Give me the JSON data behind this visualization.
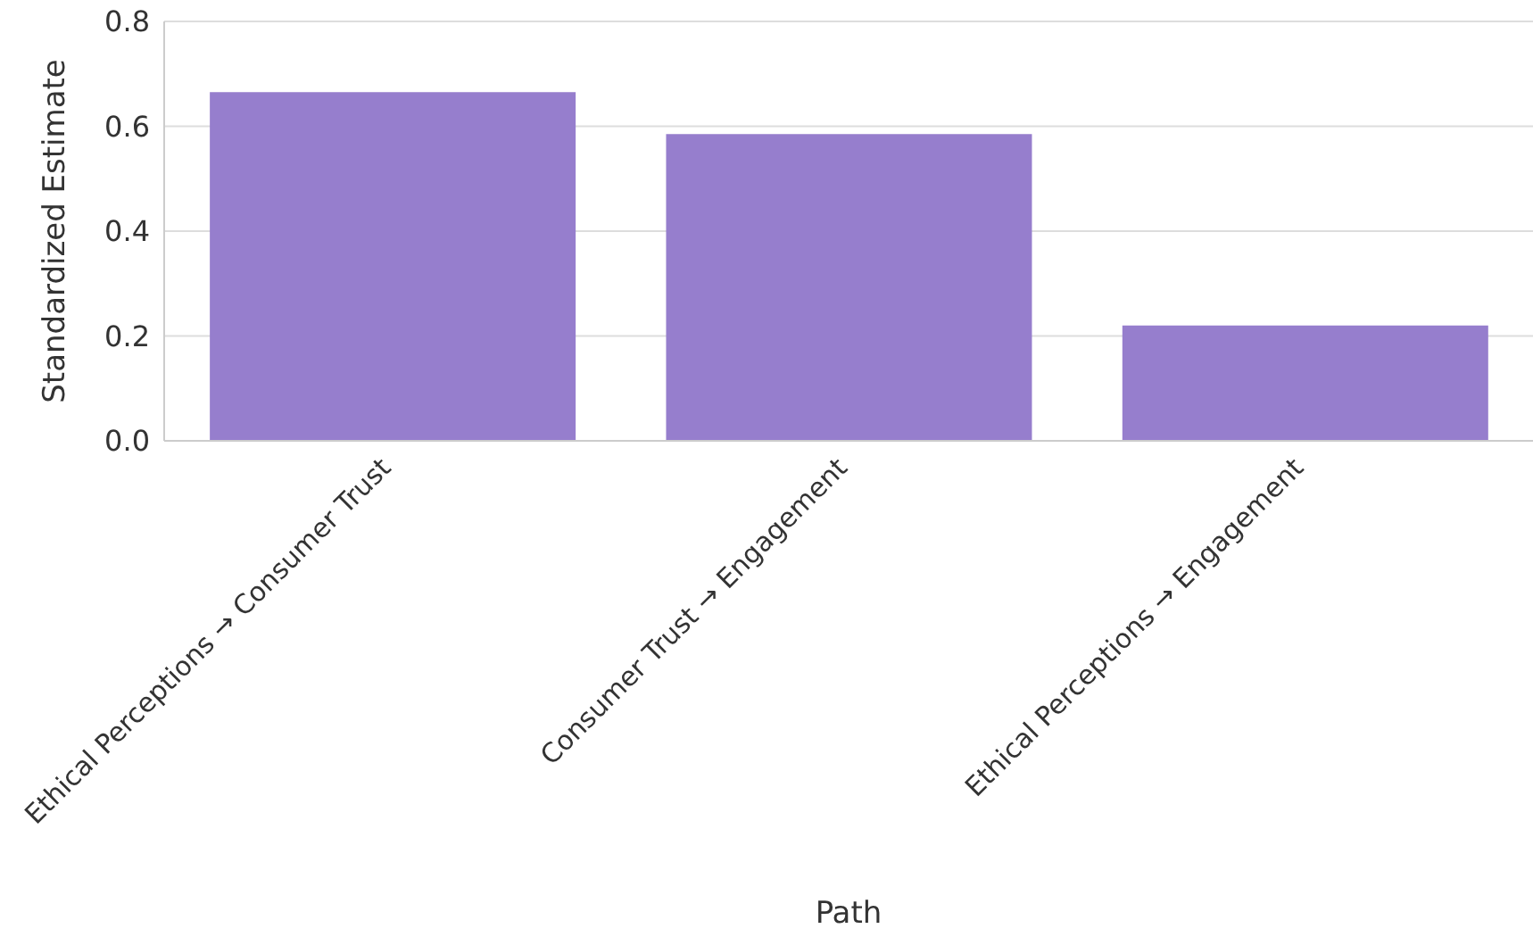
{
  "chart_data": {
    "type": "bar",
    "xlabel": "Path",
    "ylabel": "Standardized Estimate",
    "categories": [
      "Ethical Perceptions → Consumer Trust",
      "Consumer Trust → Engagement",
      "Ethical Perceptions → Engagement"
    ],
    "values": [
      0.665,
      0.585,
      0.22
    ],
    "color": "#967ecd",
    "ylim": [
      0,
      0.8
    ],
    "yticks": [
      {
        "value": 0,
        "label": "0.0"
      },
      0.2,
      0.4,
      0.6,
      0.8
    ],
    "grid": "y"
  }
}
